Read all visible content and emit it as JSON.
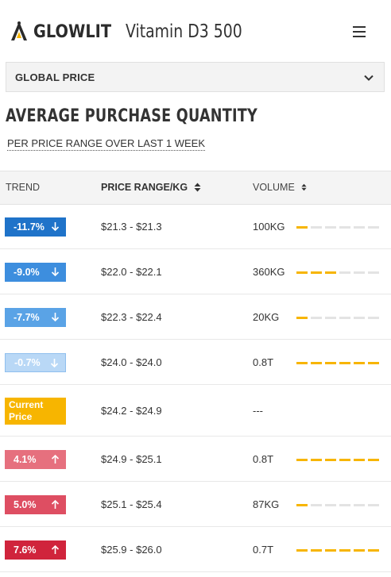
{
  "header": {
    "brand": "GLOWLIT",
    "product_title": "Vitamin D3 500"
  },
  "selector": {
    "label": "GLOBAL PRICE"
  },
  "section": {
    "title": "AVERAGE PURCHASE QUANTITY",
    "subtitle": "PER PRICE RANGE OVER LAST 1 WEEK"
  },
  "table": {
    "columns": {
      "trend": "TREND",
      "price": "PRICE RANGE/KG",
      "volume": "VOLUME"
    },
    "rows": [
      {
        "trend": "-11.7%",
        "direction": "down",
        "color": "#1f73c9",
        "price": "$21.3 - $21.3",
        "volume": "100KG",
        "level": 1
      },
      {
        "trend": "-9.0%",
        "direction": "down",
        "color": "#3d8ede",
        "price": "$22.0 - $22.1",
        "volume": "360KG",
        "level": 3
      },
      {
        "trend": "-7.7%",
        "direction": "down",
        "color": "#5aa3e6",
        "price": "$22.3 - $22.4",
        "volume": "20KG",
        "level": 1
      },
      {
        "trend": "-0.7%",
        "direction": "down",
        "color": "#b9d8f6",
        "price": "$24.0 - $24.0",
        "volume": "0.8T",
        "level": 6
      },
      {
        "trend": "Current Price",
        "direction": "none",
        "color": "#f7b500",
        "price": "$24.2 - $24.9",
        "volume": "---",
        "level": 0
      },
      {
        "trend": "4.1%",
        "direction": "up",
        "color": "#e6707e",
        "price": "$24.9 - $25.1",
        "volume": "0.8T",
        "level": 6
      },
      {
        "trend": "5.0%",
        "direction": "up",
        "color": "#de4e62",
        "price": "$25.1 - $25.4",
        "volume": "87KG",
        "level": 1
      },
      {
        "trend": "7.6%",
        "direction": "up",
        "color": "#d0243c",
        "price": "$25.9 - $26.0",
        "volume": "0.7T",
        "level": 6
      }
    ],
    "bar_segments": 6
  },
  "icons": {
    "logo": "hiker-logo-icon",
    "menu": "hamburger-menu-icon",
    "dropdown": "chevron-down-icon",
    "sort": "sort-icon",
    "down": "arrow-down-icon",
    "up": "arrow-up-icon"
  },
  "colors": {
    "accent": "#f7b500",
    "bar_empty": "#e3e3e3"
  }
}
